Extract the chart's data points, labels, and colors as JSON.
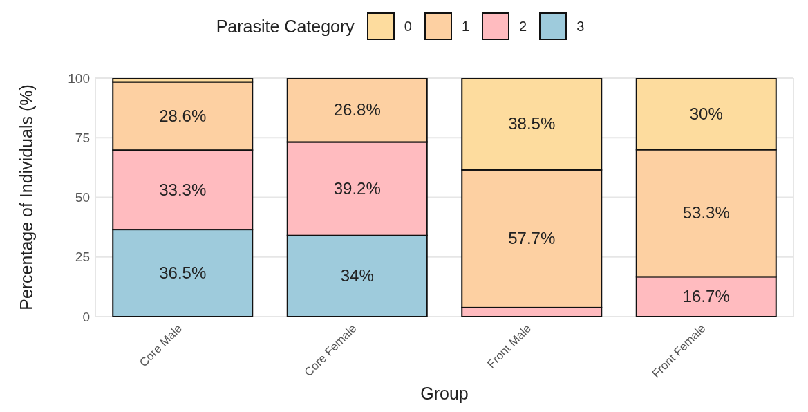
{
  "chart_data": {
    "type": "bar",
    "stacked": true,
    "xlabel": "Group",
    "ylabel": "Percentage of Individuals (%)",
    "legend_title": "Parasite Category",
    "legend": "top",
    "categories": [
      "Core Male",
      "Core Female",
      "Front Male",
      "Front Female"
    ],
    "series": [
      {
        "name": "3",
        "color": "#9ecbdc",
        "values": [
          36.5,
          34,
          0,
          0
        ],
        "value_labels": [
          "36.5%",
          "34%",
          null,
          null
        ]
      },
      {
        "name": "2",
        "color": "#ffbbbf",
        "values": [
          33.3,
          39.2,
          3.8,
          16.7
        ],
        "value_labels": [
          "33.3%",
          "39.2%",
          null,
          "16.7%"
        ]
      },
      {
        "name": "1",
        "color": "#fdd0a2",
        "values": [
          28.6,
          26.8,
          57.7,
          53.3
        ],
        "value_labels": [
          "28.6%",
          "26.8%",
          "57.7%",
          "53.3%"
        ]
      },
      {
        "name": "0",
        "color": "#fddc9e",
        "values": [
          1.6,
          0,
          38.5,
          30
        ],
        "value_labels": [
          null,
          null,
          "38.5%",
          "30%"
        ]
      }
    ],
    "ylim": [
      0,
      100
    ],
    "yticks": [
      0,
      25,
      50,
      75,
      100
    ],
    "grid": true
  }
}
